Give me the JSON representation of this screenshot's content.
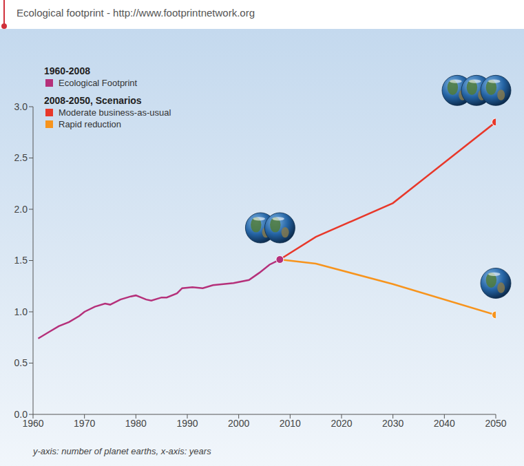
{
  "chart_data": {
    "type": "line",
    "title": "Ecological footprint - http://www.footprintnetwork.org",
    "annotations": [
      "1960-2008",
      "2008-2050, Scenarios",
      "y-axis: number of planet earths, x-axis: years"
    ],
    "x": [
      1961,
      1963,
      1965,
      1967,
      1969,
      1970,
      1972,
      1974,
      1975,
      1977,
      1979,
      1980,
      1982,
      1983,
      1985,
      1986,
      1988,
      1989,
      1991,
      1993,
      1995,
      1997,
      1999,
      2000,
      2002,
      2004,
      2006,
      2008,
      2015,
      2030,
      2050
    ],
    "series": [
      {
        "name": "Ecological Footprint",
        "color": "#b5307a",
        "values": [
          0.74,
          0.8,
          0.86,
          0.9,
          0.96,
          1.0,
          1.05,
          1.08,
          1.07,
          1.12,
          1.15,
          1.16,
          1.12,
          1.11,
          1.14,
          1.14,
          1.18,
          1.23,
          1.24,
          1.23,
          1.26,
          1.27,
          1.28,
          1.29,
          1.31,
          1.38,
          1.46,
          1.51,
          null,
          null,
          null
        ]
      },
      {
        "name": "Moderate business-as-usual",
        "color": "#e8382a",
        "values": [
          null,
          null,
          null,
          null,
          null,
          null,
          null,
          null,
          null,
          null,
          null,
          null,
          null,
          null,
          null,
          null,
          null,
          null,
          null,
          null,
          null,
          null,
          null,
          null,
          null,
          null,
          null,
          1.51,
          1.73,
          2.06,
          2.85
        ]
      },
      {
        "name": "Rapid reduction",
        "color": "#f7941d",
        "values": [
          null,
          null,
          null,
          null,
          null,
          null,
          null,
          null,
          null,
          null,
          null,
          null,
          null,
          null,
          null,
          null,
          null,
          null,
          null,
          null,
          null,
          null,
          null,
          null,
          null,
          null,
          null,
          1.51,
          1.47,
          1.27,
          0.97
        ]
      }
    ],
    "xlim": [
      1960,
      2050
    ],
    "xticks": [
      1960,
      1970,
      1980,
      1990,
      2000,
      2010,
      2020,
      2030,
      2040,
      2050
    ],
    "ylim": [
      0,
      3
    ],
    "yticks": [
      {
        "value": 0,
        "label": "0.0"
      },
      0.5,
      {
        "value": 1,
        "label": "1.0"
      },
      1.5,
      {
        "value": 2,
        "label": "2.0"
      },
      2.5,
      {
        "value": 3,
        "label": "3.0"
      }
    ],
    "grid": false,
    "legend": "top-left",
    "marker": "circle"
  }
}
